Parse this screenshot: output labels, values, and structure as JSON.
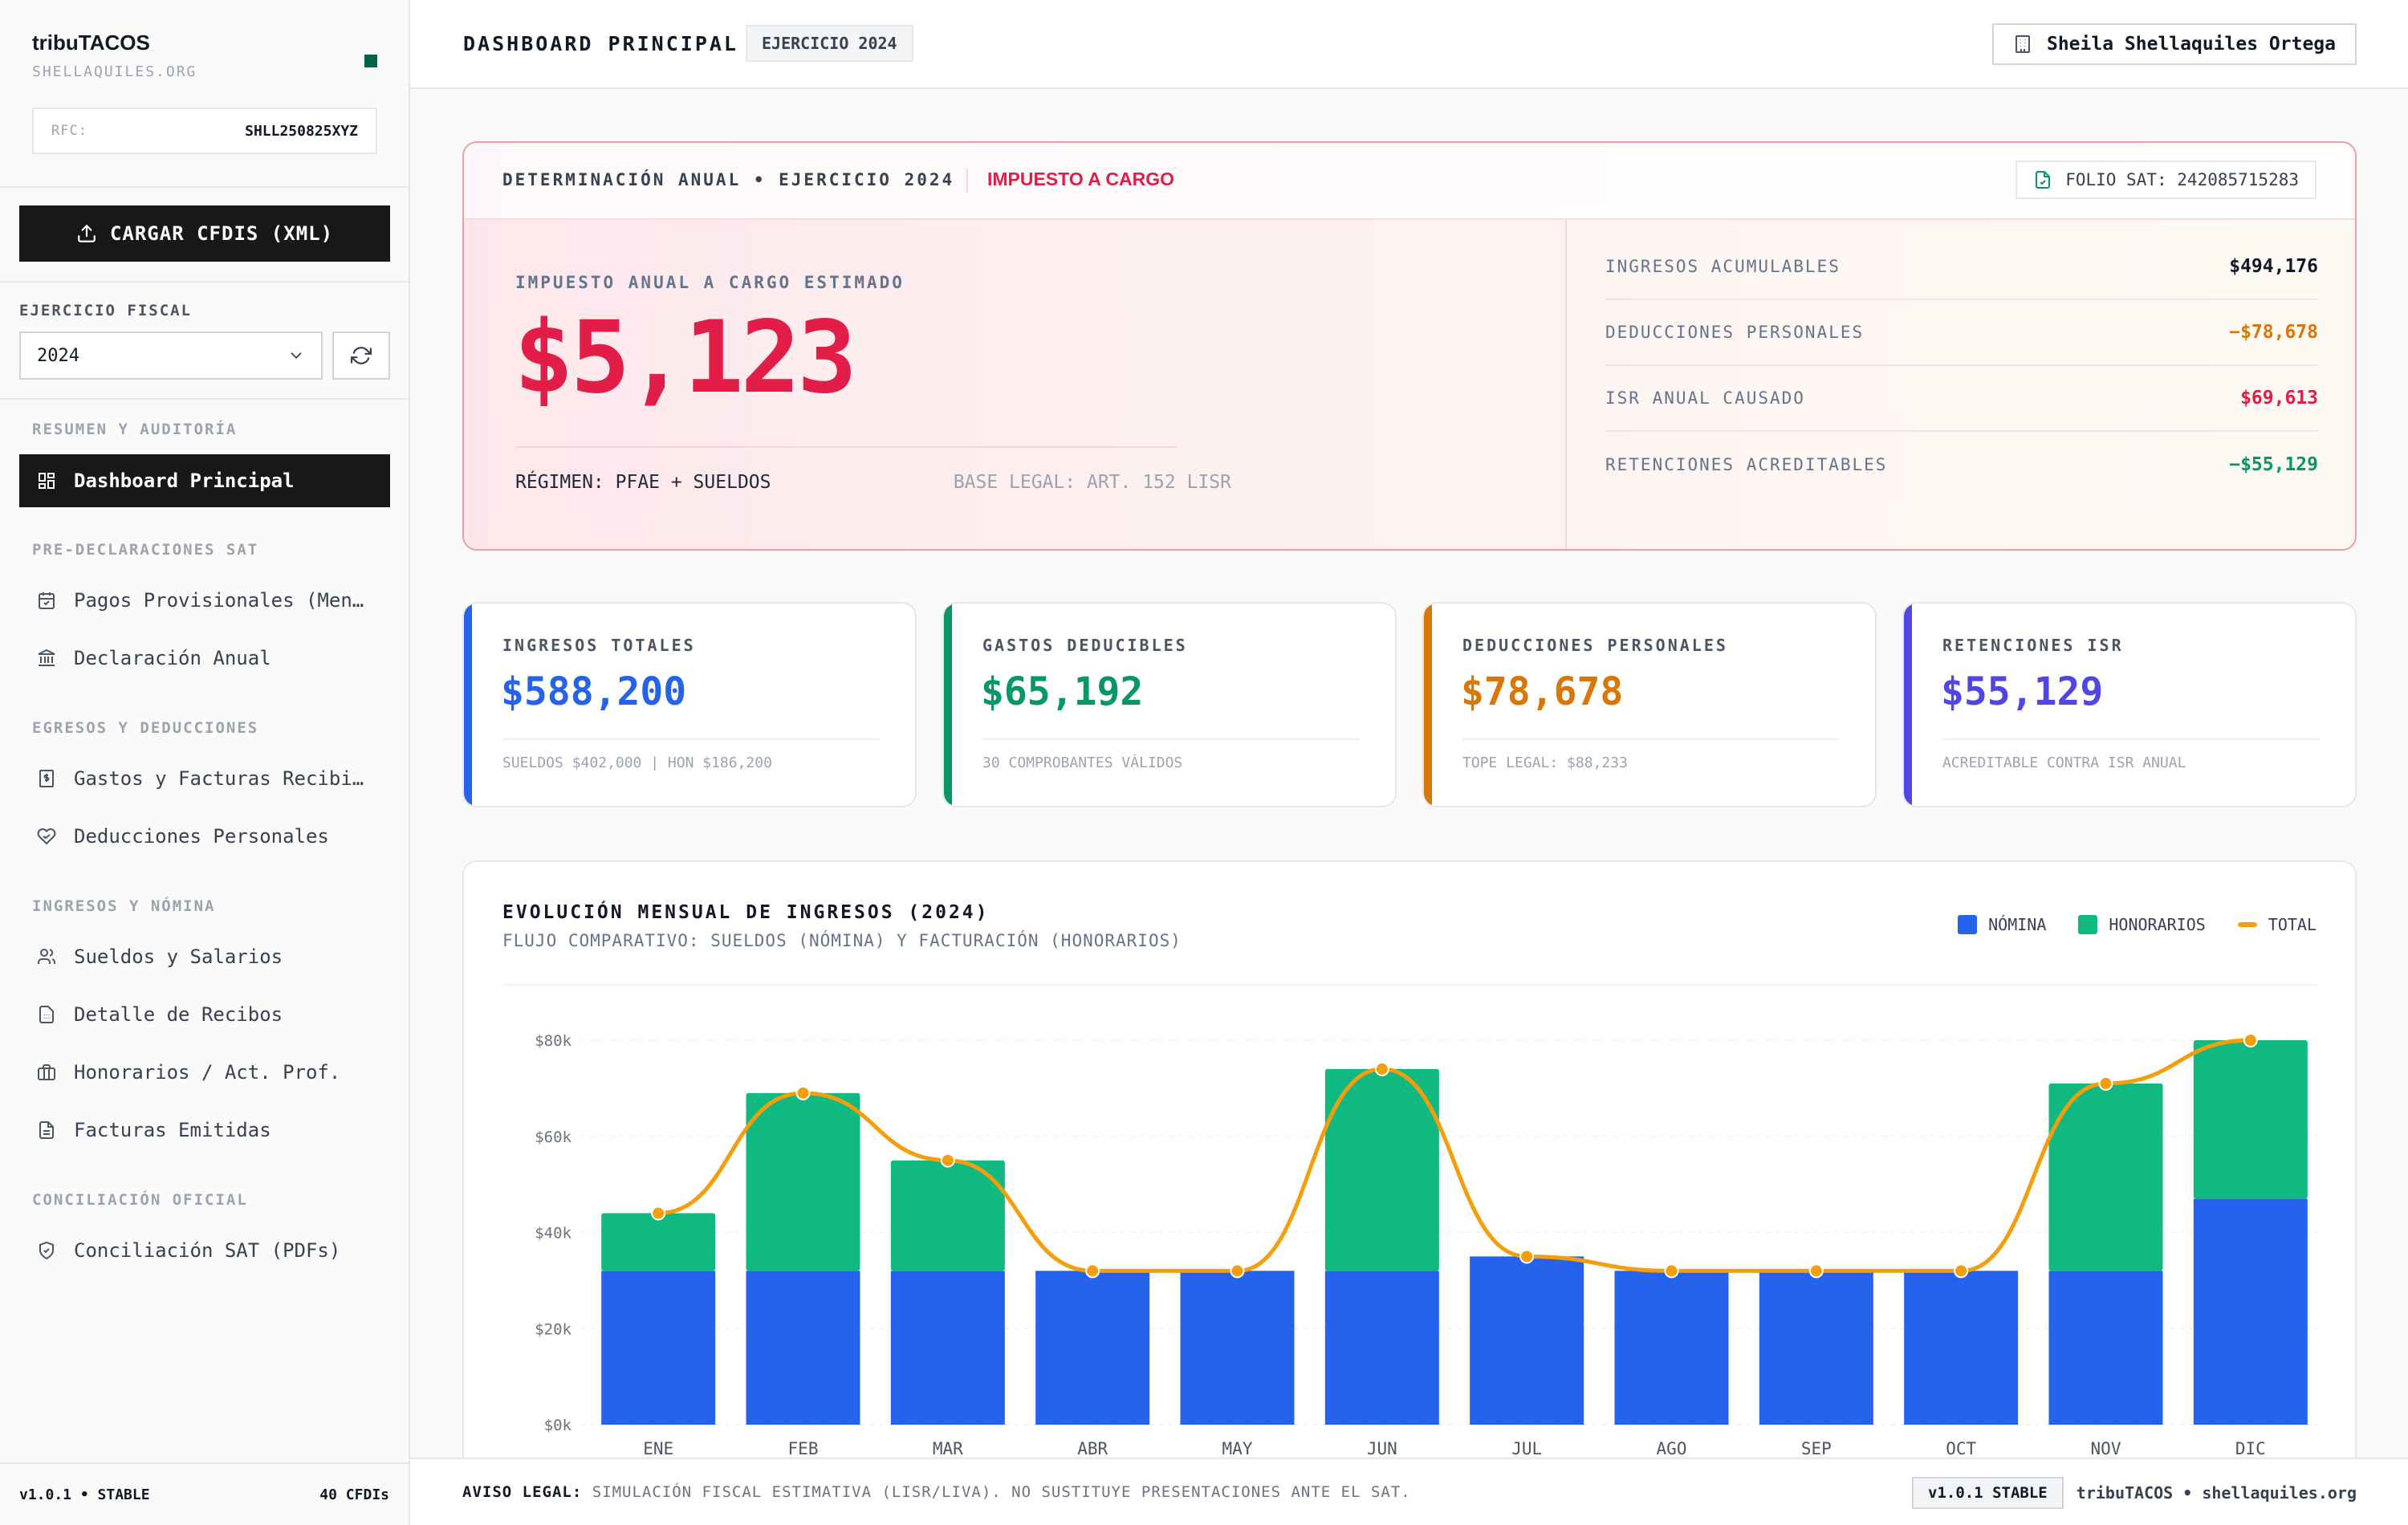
{
  "sidebar": {
    "brand": "tribuTACOS",
    "brand_sub": "SHELLAQUILES.ORG",
    "rfc_label": "RFC:",
    "rfc_value": "SHLL250825XYZ",
    "upload_label": "CARGAR CFDIS (XML)",
    "fiscal_year_label": "EJERCICIO FISCAL",
    "fiscal_year_value": "2024",
    "sections": [
      {
        "title": "RESUMEN Y AUDITORÍA",
        "items": [
          {
            "label": "Dashboard Principal",
            "icon": "dashboard-icon",
            "active": true
          }
        ]
      },
      {
        "title": "PRE-DECLARACIONES SAT",
        "items": [
          {
            "label": "Pagos Provisionales (Mensuales)",
            "icon": "calendar-icon"
          },
          {
            "label": "Declaración Anual",
            "icon": "bank-icon"
          }
        ]
      },
      {
        "title": "EGRESOS Y DEDUCCIONES",
        "items": [
          {
            "label": "Gastos y Facturas Recibidas",
            "icon": "receipt-icon"
          },
          {
            "label": "Deducciones Personales",
            "icon": "heart-hand-icon"
          }
        ]
      },
      {
        "title": "INGRESOS Y NÓMINA",
        "items": [
          {
            "label": "Sueldos y Salarios",
            "icon": "users-icon"
          },
          {
            "label": "Detalle de Recibos",
            "icon": "file-calc-icon"
          },
          {
            "label": "Honorarios / Act. Prof.",
            "icon": "briefcase-icon"
          },
          {
            "label": "Facturas Emitidas",
            "icon": "file-text-icon"
          }
        ]
      },
      {
        "title": "CONCILIACIÓN OFICIAL",
        "items": [
          {
            "label": "Conciliación SAT (PDFs)",
            "icon": "shield-check-icon"
          }
        ]
      }
    ],
    "footer_version": "v1.0.1 • STABLE",
    "footer_count": "40 CFDIs"
  },
  "topbar": {
    "title": "DASHBOARD PRINCIPAL",
    "badge": "EJERCICIO 2024",
    "user": "Sheila Shellaquiles Ortega"
  },
  "hero": {
    "title": "DETERMINACIÓN ANUAL • EJERCICIO 2024",
    "tag": "IMPUESTO A CARGO",
    "folio": "FOLIO SAT: 242085715283",
    "label": "IMPUESTO ANUAL A CARGO ESTIMADO",
    "amount": "$5,123",
    "regime": "RÉGIMEN: PFAE + SUELDOS",
    "legal": "BASE LEGAL: ART. 152 LISR",
    "rows": [
      {
        "label": "INGRESOS ACUMULABLES",
        "value": "$494,176",
        "color": "#111827"
      },
      {
        "label": "DEDUCCIONES PERSONALES",
        "value": "−$78,678",
        "color": "#d97706"
      },
      {
        "label": "ISR ANUAL CAUSADO",
        "value": "$69,613",
        "color": "#e11d48"
      },
      {
        "label": "RETENCIONES ACREDITABLES",
        "value": "−$55,129",
        "color": "#059669"
      }
    ]
  },
  "kpis": [
    {
      "label": "INGRESOS TOTALES",
      "value": "$588,200",
      "sub": "SUELDOS $402,000 | HON $186,200",
      "color": "#2563eb"
    },
    {
      "label": "GASTOS DEDUCIBLES",
      "value": "$65,192",
      "sub": "30 COMPROBANTES VÁLIDOS",
      "color": "#059669"
    },
    {
      "label": "DEDUCCIONES PERSONALES",
      "value": "$78,678",
      "sub": "TOPE LEGAL: $88,233",
      "color": "#d97706"
    },
    {
      "label": "RETENCIONES ISR",
      "value": "$55,129",
      "sub": "ACREDITABLE CONTRA ISR ANUAL",
      "color": "#4f46e5"
    }
  ],
  "chart_data": {
    "type": "bar",
    "stacked": true,
    "title": "EVOLUCIÓN MENSUAL DE INGRESOS (2024)",
    "subtitle": "FLUJO COMPARATIVO: SUELDOS (NÓMINA) Y FACTURACIÓN (HONORARIOS)",
    "categories": [
      "ENE",
      "FEB",
      "MAR",
      "ABR",
      "MAY",
      "JUN",
      "JUL",
      "AGO",
      "SEP",
      "OCT",
      "NOV",
      "DIC"
    ],
    "series": [
      {
        "name": "NÓMINA",
        "values": [
          32000,
          32000,
          32000,
          32000,
          32000,
          32000,
          35000,
          32000,
          32000,
          32000,
          32000,
          47000
        ],
        "color": "#2563eb"
      },
      {
        "name": "HONORARIOS",
        "values": [
          12000,
          37000,
          23000,
          0,
          0,
          42000,
          0,
          0,
          0,
          0,
          39000,
          33000
        ],
        "color": "#10b981"
      },
      {
        "name": "TOTAL",
        "type": "line",
        "values": [
          44000,
          69000,
          55000,
          32000,
          32000,
          74000,
          35000,
          32000,
          32000,
          32000,
          71000,
          80000
        ],
        "color": "#f59e0b"
      }
    ],
    "y_ticks": [
      "$0k",
      "$20k",
      "$40k",
      "$60k",
      "$80k"
    ],
    "ylim": [
      0,
      80000
    ],
    "legend_position": "top-right",
    "grid": true
  },
  "footer": {
    "legal_label": "AVISO LEGAL:",
    "legal_text": "SIMULACIÓN FISCAL ESTIMATIVA (LISR/LIVA). NO SUSTITUYE PRESENTACIONES ANTE EL SAT.",
    "version": "v1.0.1 STABLE",
    "brand": "tribuTACOS • shellaquiles.org"
  }
}
